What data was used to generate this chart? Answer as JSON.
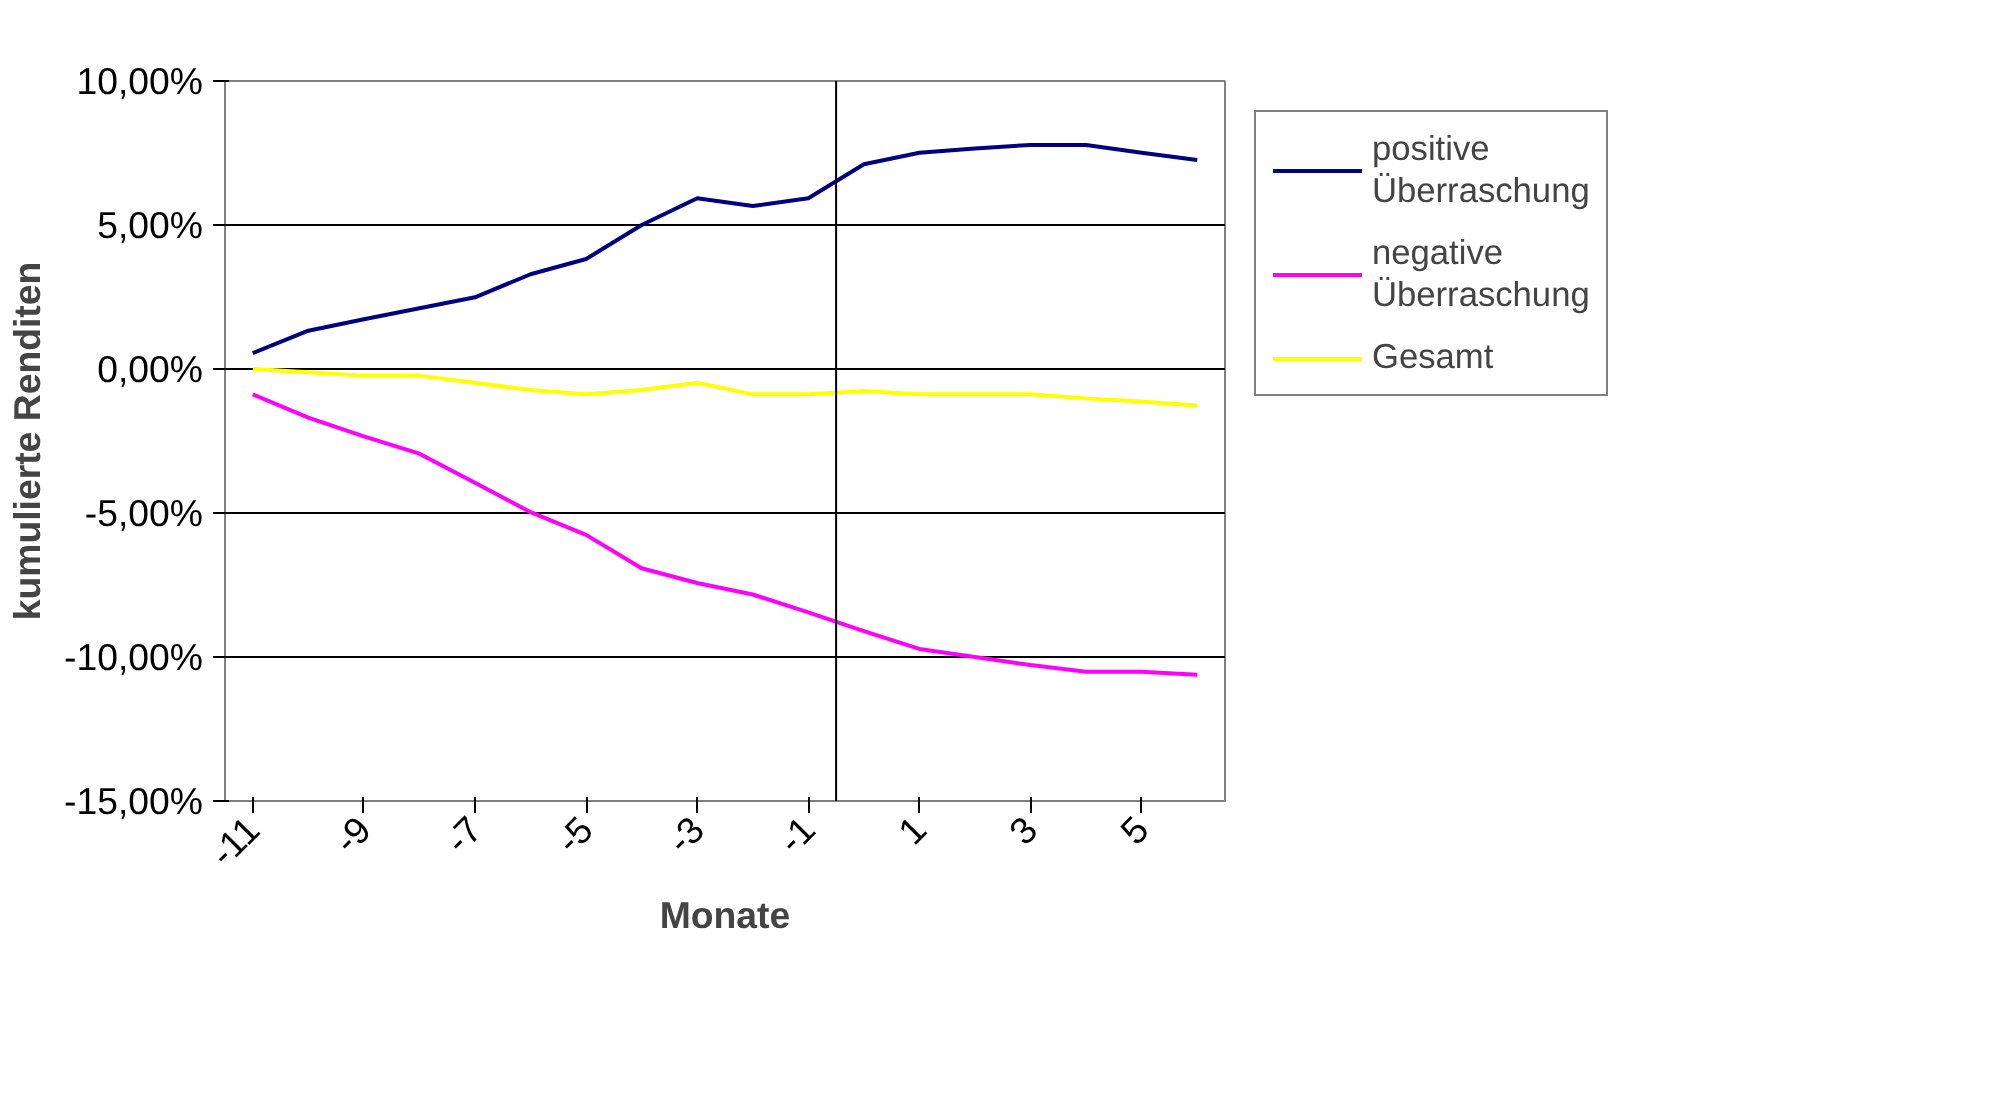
{
  "chart_data": {
    "type": "line",
    "xlabel": "Monate",
    "ylabel": "kumulierte Renditen",
    "x": [
      -11,
      -10,
      -9,
      -8,
      -7,
      -6,
      -5,
      -4,
      -3,
      -2,
      -1,
      0,
      1,
      2,
      3,
      4,
      5,
      6
    ],
    "xlim": [
      -11.5,
      6.5
    ],
    "xticks": [
      -11,
      -9,
      -7,
      -5,
      -3,
      -1,
      1,
      3,
      5
    ],
    "ylim": [
      -15,
      10
    ],
    "yticks": [
      {
        "value": -15,
        "label": "-15,00%"
      },
      {
        "value": -10,
        "label": "-10,00%"
      },
      {
        "value": -5,
        "label": "-5,00%"
      },
      {
        "value": 0,
        "label": "0,00%"
      },
      {
        "value": 5,
        "label": "5,00%"
      },
      {
        "value": 10,
        "label": "10,00%"
      }
    ],
    "series": [
      {
        "name": "positive Überraschung",
        "color": "#000080",
        "values": [
          0.55,
          1.33,
          1.73,
          2.11,
          2.49,
          3.29,
          3.82,
          5.0,
          5.93,
          5.66,
          5.93,
          7.11,
          7.51,
          7.66,
          7.78,
          7.78,
          7.51,
          7.26
        ]
      },
      {
        "name": "negative Überraschung",
        "color": "#ff00ff",
        "values": [
          -0.88,
          -1.69,
          -2.34,
          -2.94,
          -3.95,
          -4.97,
          -5.76,
          -6.92,
          -7.43,
          -7.83,
          -8.45,
          -9.1,
          -9.72,
          -10.0,
          -10.28,
          -10.51,
          -10.51,
          -10.62
        ]
      },
      {
        "name": "Gesamt",
        "color": "#ffff00",
        "values": [
          0.0,
          -0.11,
          -0.23,
          -0.23,
          -0.48,
          -0.73,
          -0.88,
          -0.73,
          -0.48,
          -0.88,
          -0.88,
          -0.76,
          -0.88,
          -0.88,
          -0.88,
          -1.02,
          -1.13,
          -1.27
        ]
      }
    ],
    "ref_lines": [
      {
        "axis": "x",
        "value": -0.5,
        "color": "#000000"
      }
    ],
    "grid": "y",
    "legend": "right",
    "marker": "none",
    "line_style": "solid"
  }
}
